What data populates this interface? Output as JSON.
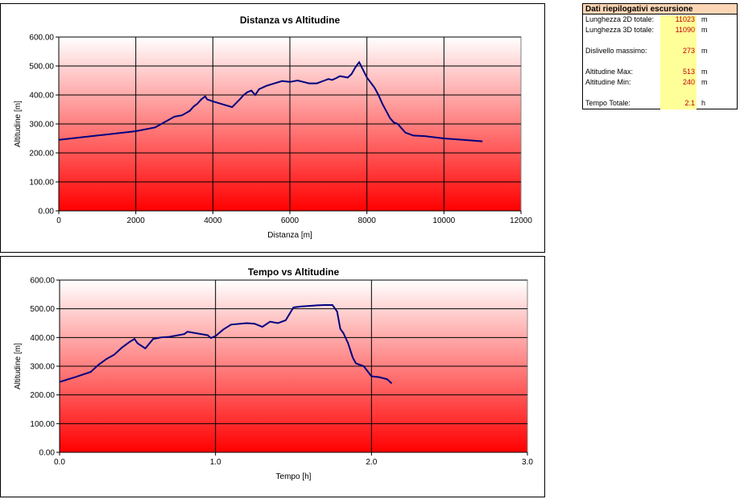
{
  "charts": [
    {
      "type": "line",
      "title": "Distanza vs Altitudine",
      "xlabel": "Distanza [m]",
      "ylabel": "Altitudine [m]",
      "xlim": [
        0,
        12000
      ],
      "ylim": [
        0,
        600
      ],
      "x_ticks": [
        "0",
        "2000",
        "4000",
        "6000",
        "8000",
        "10000",
        "12000"
      ],
      "x_tick_values": [
        0,
        2000,
        4000,
        6000,
        8000,
        10000,
        12000
      ],
      "y_ticks": [
        "0.00",
        "100.00",
        "200.00",
        "300.00",
        "400.00",
        "500.00",
        "600.00"
      ],
      "y_tick_values": [
        0,
        100,
        200,
        300,
        400,
        500,
        600
      ],
      "grid": true,
      "line_color": "#000080",
      "x": [
        0,
        1000,
        2000,
        2500,
        2800,
        3000,
        3200,
        3400,
        3500,
        3600,
        3700,
        3800,
        3850,
        4000,
        4200,
        4500,
        4700,
        4800,
        4900,
        5000,
        5100,
        5200,
        5400,
        5600,
        5800,
        6000,
        6200,
        6500,
        6700,
        6900,
        7000,
        7100,
        7200,
        7300,
        7500,
        7600,
        7700,
        7750,
        7800,
        8000,
        8200,
        8300,
        8400,
        8500,
        8600,
        8700,
        8800,
        8900,
        9000,
        9200,
        9500,
        10000,
        10500,
        11000
      ],
      "y": [
        245,
        260,
        275,
        288,
        310,
        325,
        330,
        345,
        360,
        370,
        385,
        395,
        385,
        378,
        370,
        358,
        385,
        400,
        410,
        415,
        400,
        420,
        432,
        440,
        448,
        445,
        450,
        440,
        440,
        450,
        455,
        452,
        458,
        465,
        460,
        472,
        495,
        505,
        513,
        460,
        425,
        400,
        370,
        345,
        320,
        305,
        300,
        285,
        270,
        260,
        258,
        250,
        245,
        240
      ]
    },
    {
      "type": "line",
      "title": "Tempo vs Altitudine",
      "xlabel": "Tempo [h]",
      "ylabel": "Altitudine [m]",
      "xlim": [
        0,
        3
      ],
      "ylim": [
        0,
        600
      ],
      "x_ticks": [
        "0.0",
        "1.0",
        "2.0",
        "3.0"
      ],
      "x_tick_values": [
        0,
        1,
        2,
        3
      ],
      "y_ticks": [
        "0.00",
        "100.00",
        "200.00",
        "300.00",
        "400.00",
        "500.00",
        "600.00"
      ],
      "y_tick_values": [
        0,
        100,
        200,
        300,
        400,
        500,
        600
      ],
      "grid": true,
      "line_color": "#000080",
      "x": [
        0,
        0.1,
        0.2,
        0.25,
        0.3,
        0.35,
        0.4,
        0.45,
        0.48,
        0.5,
        0.55,
        0.6,
        0.65,
        0.7,
        0.8,
        0.82,
        0.95,
        0.97,
        1.0,
        1.05,
        1.1,
        1.2,
        1.25,
        1.3,
        1.35,
        1.4,
        1.45,
        1.5,
        1.55,
        1.6,
        1.65,
        1.7,
        1.75,
        1.78,
        1.8,
        1.82,
        1.85,
        1.88,
        1.9,
        1.95,
        2.0,
        2.05,
        2.1,
        2.13
      ],
      "y": [
        245,
        262,
        280,
        305,
        325,
        340,
        365,
        385,
        395,
        380,
        362,
        395,
        400,
        402,
        412,
        420,
        408,
        398,
        405,
        428,
        445,
        450,
        448,
        437,
        455,
        450,
        460,
        505,
        508,
        510,
        512,
        513,
        513,
        490,
        430,
        415,
        380,
        330,
        310,
        300,
        265,
        262,
        255,
        240
      ]
    }
  ],
  "summary": {
    "title": "Dati riepilogativi escursione",
    "rows": [
      {
        "label": "Lunghezza 2D totale:",
        "value": "11023",
        "unit": "m"
      },
      {
        "label": "Lunghezza 3D totale:",
        "value": "11090",
        "unit": "m"
      },
      {
        "label": "Dislivello massimo:",
        "value": "273",
        "unit": "m"
      },
      {
        "label": "Altitudine Max:",
        "value": "513",
        "unit": "m"
      },
      {
        "label": "Altitudine Min:",
        "value": "240",
        "unit": "m"
      },
      {
        "label": "Tempo Totale:",
        "value": "2.1",
        "unit": "h"
      }
    ]
  },
  "chart_data": [
    {
      "type": "line",
      "title": "Distanza vs Altitudine",
      "xlabel": "Distanza [m]",
      "ylabel": "Altitudine [m]",
      "xlim": [
        0,
        12000
      ],
      "ylim": [
        0,
        600
      ],
      "series": [
        {
          "x": [
            0,
            2000,
            3800,
            4500,
            5000,
            6000,
            7800,
            8500,
            9000,
            11000
          ],
          "values": [
            245,
            275,
            395,
            358,
            415,
            445,
            513,
            345,
            270,
            240
          ]
        }
      ]
    },
    {
      "type": "line",
      "title": "Tempo vs Altitudine",
      "xlabel": "Tempo [h]",
      "ylabel": "Altitudine [m]",
      "xlim": [
        0,
        3
      ],
      "ylim": [
        0,
        600
      ],
      "series": [
        {
          "x": [
            0,
            0.48,
            0.55,
            1.0,
            1.5,
            1.75,
            2.0,
            2.13
          ],
          "values": [
            245,
            395,
            362,
            405,
            505,
            513,
            265,
            240
          ]
        }
      ]
    }
  ]
}
